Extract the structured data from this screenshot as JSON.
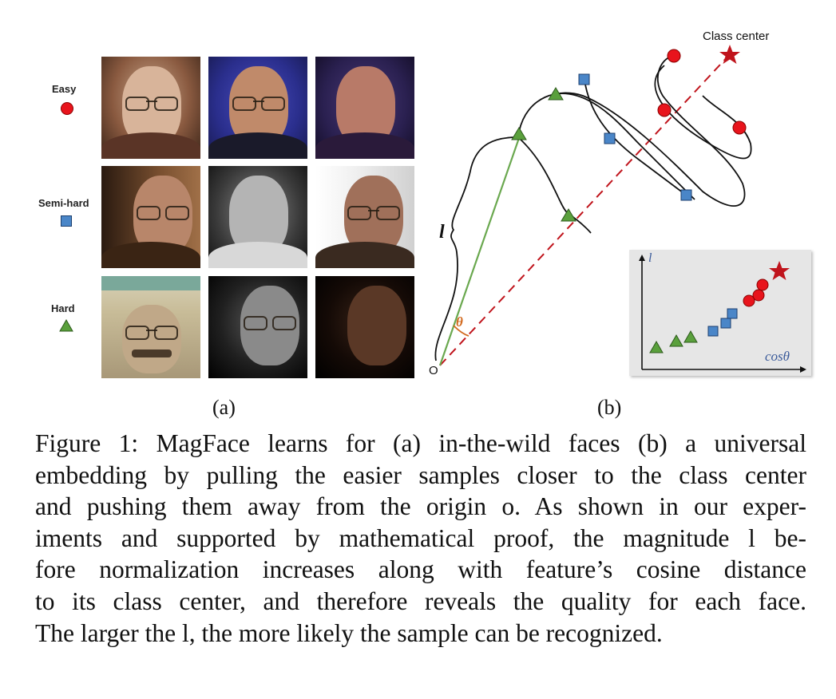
{
  "legend": {
    "easy": "Easy",
    "semi_hard": "Semi-hard",
    "hard": "Hard"
  },
  "panel_labels": {
    "a": "(a)",
    "b": "(b)"
  },
  "diagram": {
    "class_center": "Class center",
    "l_label": "l",
    "theta_label": "θ",
    "origin_label": "O",
    "inset_y_label": "l",
    "inset_x_label": "cosθ"
  },
  "caption": {
    "lines": [
      "Figure 1: MagFace learns for (a) in-the-wild faces (b) a universal",
      "embedding by pulling the easier samples closer to the class center",
      "and pushing them away from the origin o. As shown in our exper-",
      "iments and supported by mathematical proof, the magnitude l be-",
      "fore normalization increases along with feature’s cosine distance",
      "to its class center, and therefore reveals the quality for each face.",
      "The larger the l, the more likely the sample can be recognized."
    ]
  },
  "colors": {
    "easy": "#e8141c",
    "semi_hard": "#4a86c8",
    "hard": "#5aa03c",
    "dashed_line": "#c0141c",
    "vector": "#6aa84f",
    "theta": "#d2691e",
    "star": "#c0141c"
  }
}
